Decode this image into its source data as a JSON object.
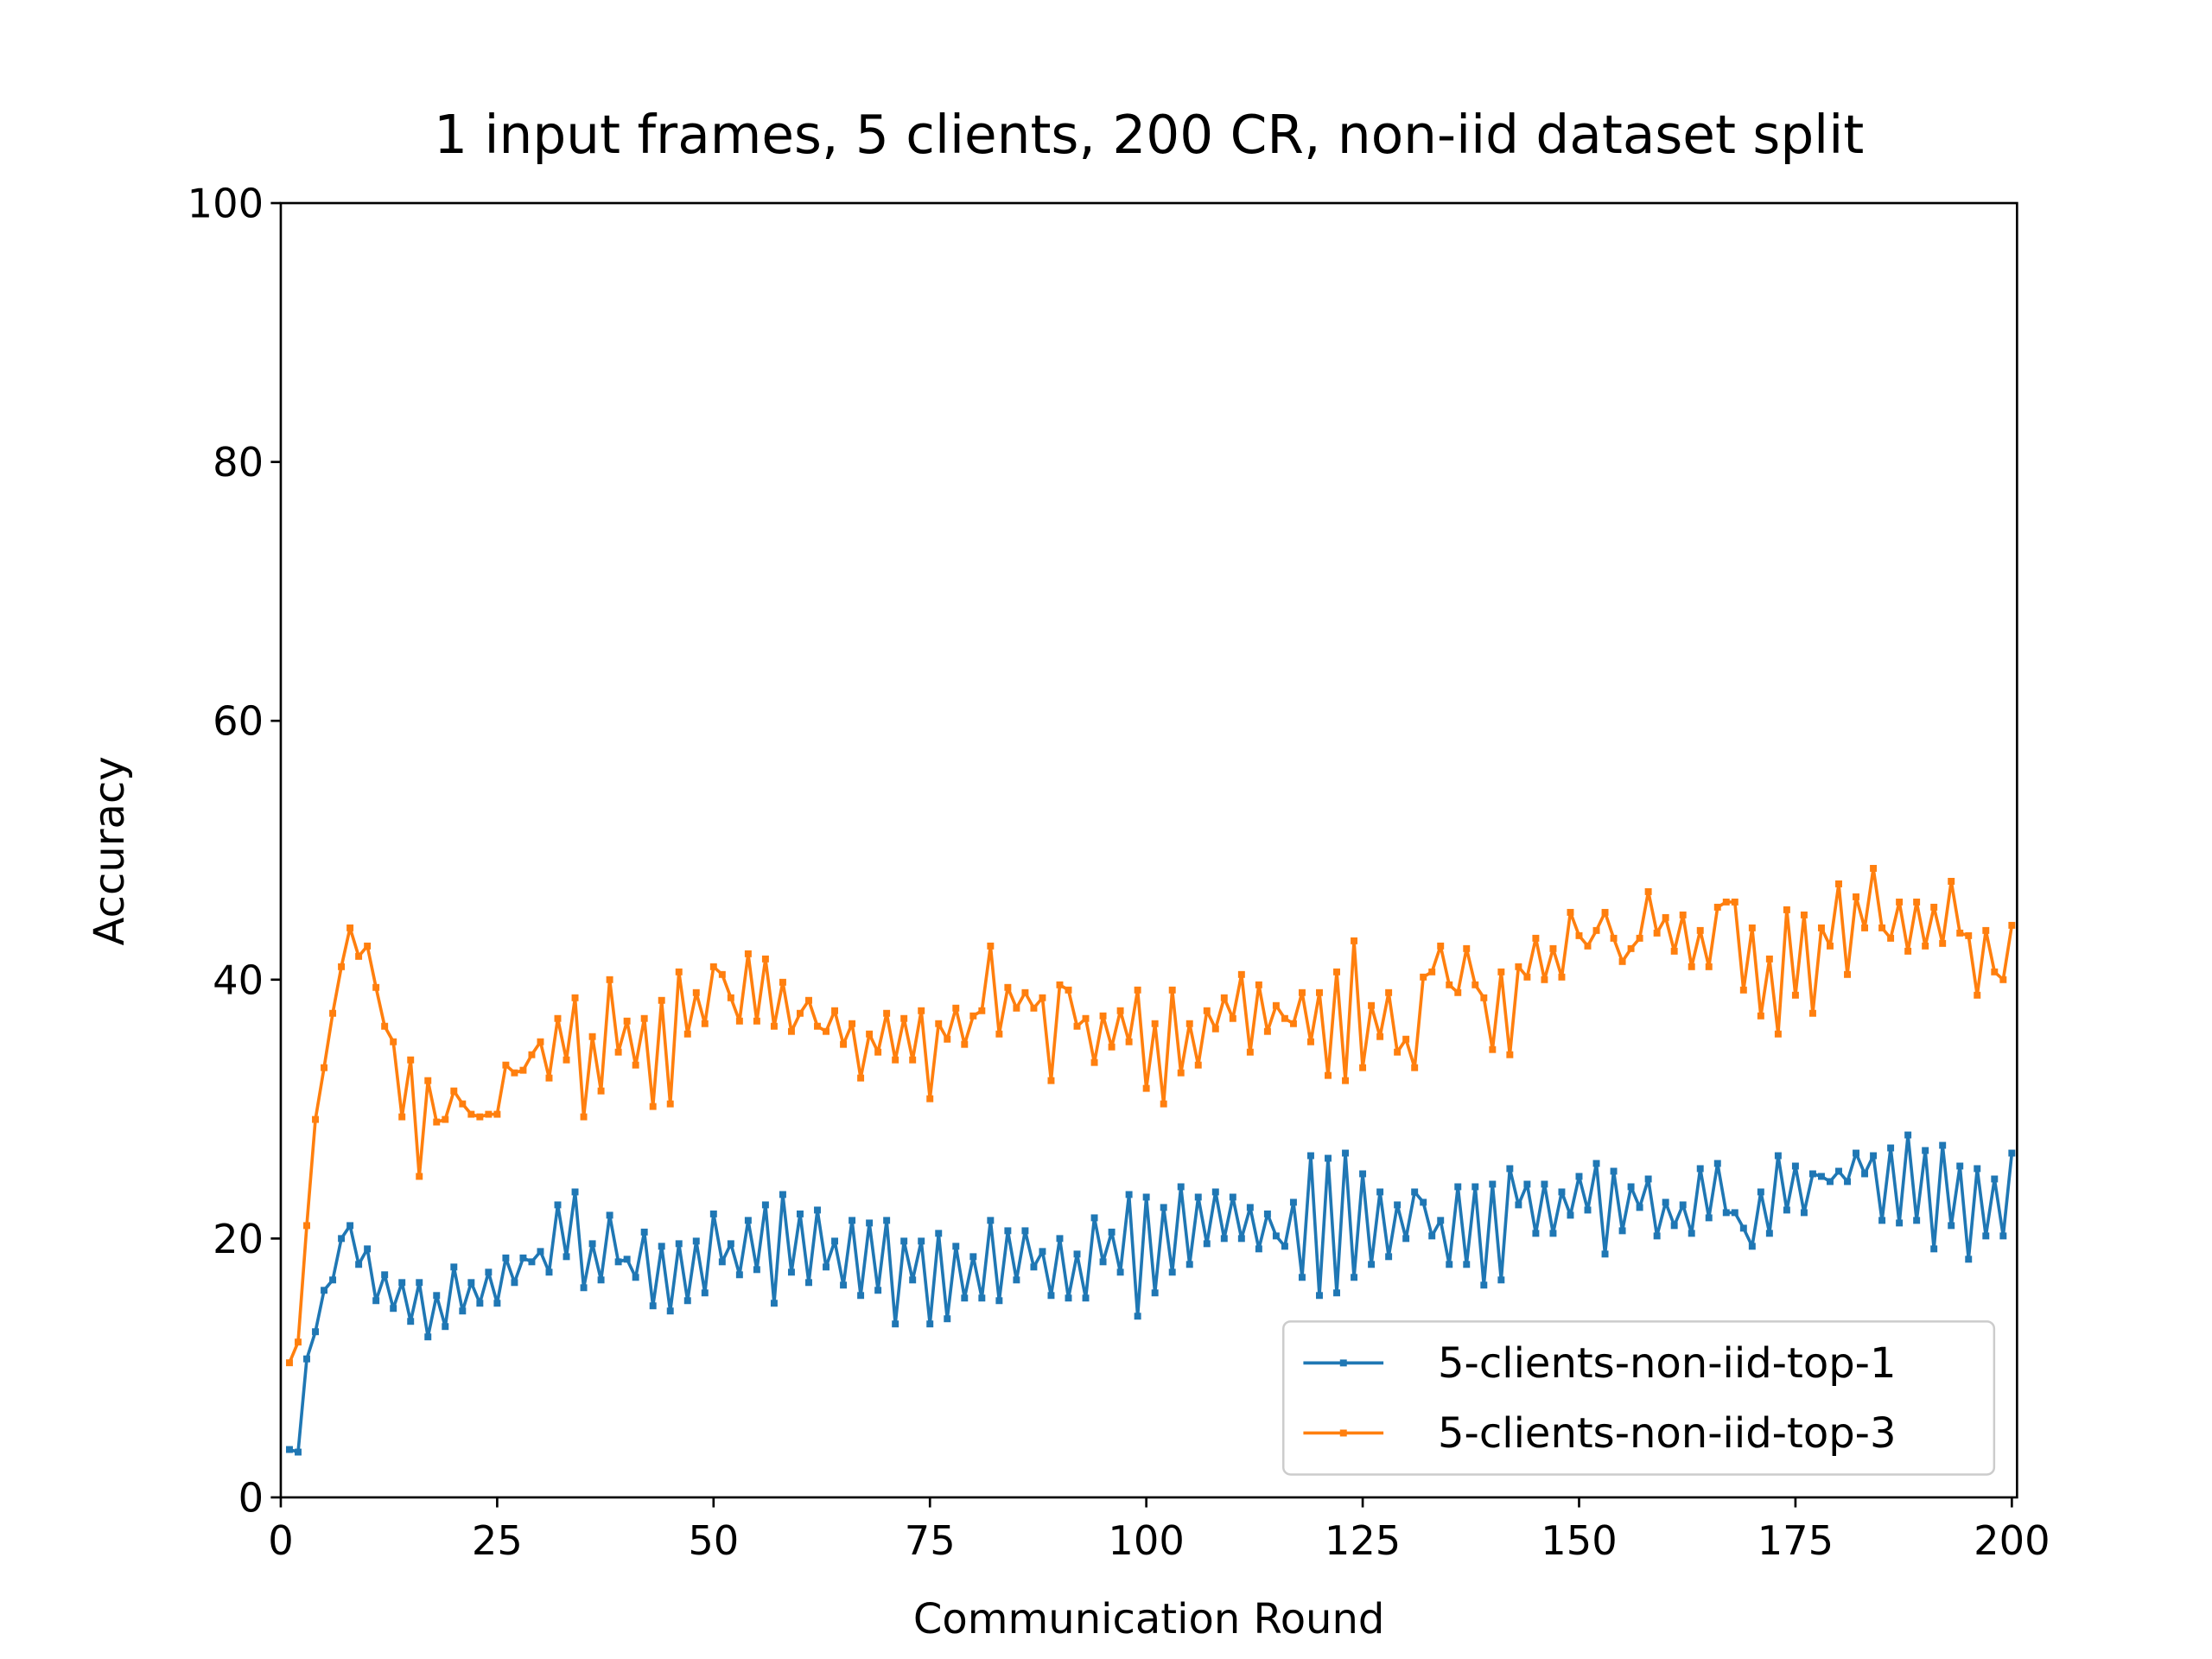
{
  "chart_data": {
    "type": "line",
    "title": "1 input frames, 5 clients, 200 CR, non-iid dataset split",
    "xlabel": "Communication Round",
    "ylabel": "Accuracy",
    "x": [
      1,
      2,
      3,
      4,
      5,
      6,
      7,
      8,
      9,
      10,
      11,
      12,
      13,
      14,
      15,
      16,
      17,
      18,
      19,
      20,
      21,
      22,
      23,
      24,
      25,
      26,
      27,
      28,
      29,
      30,
      31,
      32,
      33,
      34,
      35,
      36,
      37,
      38,
      39,
      40,
      41,
      42,
      43,
      44,
      45,
      46,
      47,
      48,
      49,
      50,
      51,
      52,
      53,
      54,
      55,
      56,
      57,
      58,
      59,
      60,
      61,
      62,
      63,
      64,
      65,
      66,
      67,
      68,
      69,
      70,
      71,
      72,
      73,
      74,
      75,
      76,
      77,
      78,
      79,
      80,
      81,
      82,
      83,
      84,
      85,
      86,
      87,
      88,
      89,
      90,
      91,
      92,
      93,
      94,
      95,
      96,
      97,
      98,
      99,
      100,
      101,
      102,
      103,
      104,
      105,
      106,
      107,
      108,
      109,
      110,
      111,
      112,
      113,
      114,
      115,
      116,
      117,
      118,
      119,
      120,
      121,
      122,
      123,
      124,
      125,
      126,
      127,
      128,
      129,
      130,
      131,
      132,
      133,
      134,
      135,
      136,
      137,
      138,
      139,
      140,
      141,
      142,
      143,
      144,
      145,
      146,
      147,
      148,
      149,
      150,
      151,
      152,
      153,
      154,
      155,
      156,
      157,
      158,
      159,
      160,
      161,
      162,
      163,
      164,
      165,
      166,
      167,
      168,
      169,
      170,
      171,
      172,
      173,
      174,
      175,
      176,
      177,
      178,
      179,
      180,
      181,
      182,
      183,
      184,
      185,
      186,
      187,
      188,
      189,
      190,
      191,
      192,
      193,
      194,
      195,
      196,
      197,
      198,
      199,
      200
    ],
    "series": [
      {
        "name": "5-clients-non-iid-top-1",
        "color": "#1f77b4",
        "values": [
          3.7,
          3.5,
          10.7,
          12.8,
          16,
          16.8,
          20,
          21,
          18,
          19.2,
          15.2,
          17.2,
          14.6,
          16.6,
          13.6,
          16.6,
          12.4,
          15.6,
          13.2,
          17.8,
          14.4,
          16.6,
          15,
          17.4,
          15,
          18.5,
          16.6,
          18.5,
          18.2,
          19,
          17.4,
          22.6,
          18.6,
          23.6,
          16.2,
          19.6,
          16.8,
          21.8,
          18.2,
          18.4,
          17,
          20.5,
          14.8,
          19.4,
          14.4,
          19.6,
          15.2,
          19.8,
          15.8,
          21.9,
          18.2,
          19.6,
          17.2,
          21.4,
          17.6,
          22.6,
          15,
          23.4,
          17.4,
          21.9,
          16.6,
          22.2,
          17.8,
          19.8,
          16.4,
          21.4,
          15.6,
          21.2,
          16,
          21.4,
          13.4,
          19.8,
          16.8,
          19.8,
          13.4,
          20.4,
          13.8,
          19.4,
          15.4,
          18.6,
          15.4,
          21.4,
          15.2,
          20.6,
          16.8,
          20.6,
          17.8,
          19,
          15.6,
          20,
          15.4,
          18.8,
          15.4,
          21.6,
          18.2,
          20.5,
          17.4,
          23.4,
          14,
          23.2,
          15.8,
          22.4,
          17.4,
          24,
          18,
          23.2,
          19.6,
          23.6,
          20,
          23.2,
          20,
          22.4,
          19.2,
          21.9,
          20.2,
          19.4,
          22.8,
          17,
          26.4,
          15.6,
          26.2,
          15.8,
          26.6,
          17,
          25,
          18,
          23.6,
          18.6,
          22.6,
          20,
          23.6,
          22.8,
          20.2,
          21.4,
          18,
          24,
          18,
          24,
          16.4,
          24.2,
          16.8,
          25.4,
          22.6,
          24.2,
          20.4,
          24.2,
          20.4,
          23.6,
          21.8,
          24.8,
          22.2,
          25.8,
          18.8,
          25.2,
          20.6,
          24,
          22.4,
          24.6,
          20.2,
          22.8,
          21,
          22.6,
          20.4,
          25.4,
          21.6,
          25.8,
          22,
          22,
          20.8,
          19.4,
          23.6,
          20.4,
          26.4,
          22.2,
          25.6,
          22,
          25,
          24.8,
          24.4,
          25.2,
          24.4,
          26.6,
          25,
          26.4,
          21.4,
          27,
          21.2,
          28,
          21.4,
          26.8,
          19.2,
          27.2,
          21,
          25.6,
          18.4,
          25.4,
          20.2,
          24.6,
          20.2,
          26.6
        ]
      },
      {
        "name": "5-clients-non-iid-top-3",
        "color": "#ff7f0e",
        "values": [
          10.4,
          12,
          21,
          29.2,
          33.2,
          37.4,
          41,
          44,
          41.8,
          42.6,
          39.4,
          36.4,
          35.2,
          29.4,
          33.8,
          24.8,
          32.2,
          29,
          29.2,
          31.4,
          30.4,
          29.6,
          29.4,
          29.6,
          29.6,
          33.4,
          32.8,
          33,
          34.2,
          35.2,
          32.4,
          37,
          33.8,
          38.6,
          29.4,
          35.6,
          31.4,
          40,
          34.4,
          36.8,
          33.4,
          37,
          30.2,
          38.4,
          30.4,
          40.6,
          35.8,
          39,
          36.6,
          41,
          40.4,
          38.6,
          36.8,
          42,
          36.8,
          41.6,
          36.4,
          39.8,
          36,
          37.4,
          38.4,
          36.4,
          36,
          37.6,
          35,
          36.6,
          32.4,
          35.8,
          34.4,
          37.4,
          33.8,
          37,
          33.8,
          37.6,
          30.8,
          36.6,
          35.4,
          37.8,
          35,
          37.2,
          37.6,
          42.6,
          35.8,
          39.4,
          37.8,
          39,
          37.8,
          38.6,
          32.2,
          39.6,
          39.2,
          36.4,
          37,
          33.6,
          37.2,
          34.8,
          37.6,
          35.2,
          39.2,
          31.6,
          36.6,
          30.4,
          39.2,
          32.8,
          36.6,
          33.4,
          37.6,
          36.2,
          38.6,
          37,
          40.4,
          34.4,
          39.6,
          36,
          38,
          37,
          36.6,
          39,
          35.2,
          39,
          32.6,
          40.6,
          32.2,
          43,
          33.2,
          38,
          35.6,
          39,
          34.4,
          35.4,
          33.2,
          40.2,
          40.6,
          42.6,
          39.6,
          39,
          42.4,
          39.6,
          38.6,
          34.6,
          40.6,
          34.2,
          41,
          40.2,
          43.2,
          40,
          42.4,
          40.2,
          45.2,
          43.4,
          42.6,
          43.8,
          45.2,
          43.2,
          41.4,
          42.4,
          43.2,
          46.8,
          43.6,
          44.8,
          42.2,
          45,
          41,
          43.8,
          41,
          45.6,
          46,
          46,
          39.2,
          44,
          37.2,
          41.6,
          35.8,
          45.4,
          38.8,
          45,
          37.4,
          44,
          42.6,
          47.4,
          40.4,
          46.4,
          44,
          48.6,
          44,
          43.2,
          46,
          42.2,
          46,
          42.6,
          45.6,
          42.8,
          47.6,
          43.6,
          43.4,
          38.8,
          43.8,
          40.6,
          40,
          44.2
        ]
      }
    ],
    "xlim": [
      0,
      200.6
    ],
    "ylim": [
      0,
      100
    ],
    "xticks": [
      0,
      25,
      50,
      75,
      100,
      125,
      150,
      175,
      200
    ],
    "yticks": [
      0,
      20,
      40,
      60,
      80,
      100
    ],
    "grid": false,
    "legend": "lower right"
  }
}
